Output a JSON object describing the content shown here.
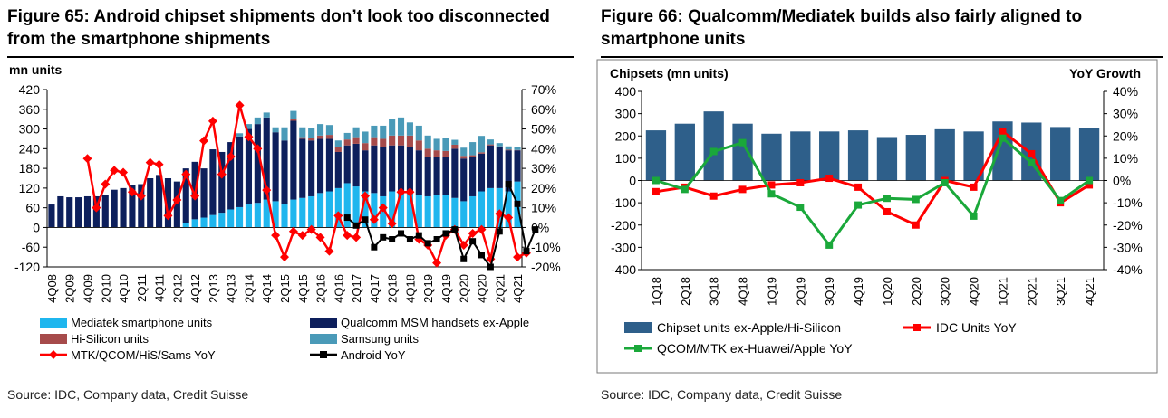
{
  "chart_data": [
    {
      "type": "bar",
      "title": "Figure 65: Android chipset shipments don’t look too disconnected from the smartphone shipments",
      "ylabel": "mn units",
      "ylim": [
        -120,
        420
      ],
      "y_ticks": [
        "420",
        "360",
        "300",
        "240",
        "180",
        "120",
        "60",
        "0",
        "-60",
        "-120"
      ],
      "y2lim": [
        -0.2,
        0.7
      ],
      "y2_ticks": [
        "70%",
        "60%",
        "50%",
        "40%",
        "30%",
        "20%",
        "10%",
        "0%",
        "-10%",
        "-20%"
      ],
      "x_labels": [
        "4Q08",
        "2Q09",
        "4Q09",
        "2Q10",
        "4Q10",
        "2Q11",
        "4Q11",
        "2Q12",
        "4Q12",
        "2Q13",
        "4Q13",
        "2Q14",
        "4Q14",
        "2Q15",
        "4Q15",
        "2Q16",
        "4Q16",
        "2Q17",
        "4Q17",
        "2Q18",
        "4Q18",
        "2Q19",
        "4Q19",
        "2Q20",
        "4Q20",
        "2Q21",
        "4Q21"
      ],
      "quarters": [
        "4Q08",
        "1Q09",
        "2Q09",
        "3Q09",
        "4Q09",
        "1Q10",
        "2Q10",
        "3Q10",
        "4Q10",
        "1Q11",
        "2Q11",
        "3Q11",
        "4Q11",
        "1Q12",
        "2Q12",
        "3Q12",
        "4Q12",
        "1Q13",
        "2Q13",
        "3Q13",
        "4Q13",
        "1Q14",
        "2Q14",
        "3Q14",
        "4Q14",
        "1Q15",
        "2Q15",
        "3Q15",
        "4Q15",
        "1Q16",
        "2Q16",
        "3Q16",
        "4Q16",
        "1Q17",
        "2Q17",
        "3Q17",
        "4Q17",
        "1Q18",
        "2Q18",
        "3Q18",
        "4Q18",
        "1Q19",
        "2Q19",
        "3Q19",
        "4Q19",
        "1Q20",
        "2Q20",
        "3Q20",
        "4Q20",
        "1Q21",
        "2Q21",
        "3Q21",
        "4Q21"
      ],
      "stack_series": [
        {
          "name": "Mediatek smartphone units",
          "color": "#1fb6ee",
          "values": [
            0,
            0,
            0,
            0,
            0,
            0,
            0,
            0,
            0,
            0,
            0,
            0,
            0,
            0,
            0,
            15,
            25,
            30,
            38,
            45,
            55,
            62,
            70,
            75,
            85,
            80,
            70,
            85,
            90,
            95,
            105,
            110,
            120,
            135,
            125,
            110,
            105,
            95,
            110,
            110,
            105,
            100,
            95,
            100,
            100,
            90,
            80,
            95,
            110,
            120,
            120,
            110,
            140
          ]
        },
        {
          "name": "Qualcomm MSM handsets ex-Apple",
          "color": "#0d1f5c",
          "values": [
            70,
            95,
            92,
            92,
            95,
            95,
            100,
            115,
            120,
            128,
            132,
            150,
            160,
            150,
            140,
            165,
            175,
            150,
            200,
            185,
            205,
            215,
            230,
            240,
            250,
            210,
            195,
            240,
            180,
            170,
            165,
            160,
            110,
            115,
            130,
            125,
            145,
            150,
            140,
            140,
            140,
            135,
            120,
            115,
            115,
            150,
            130,
            120,
            115,
            130,
            125,
            125,
            95
          ]
        },
        {
          "name": "Hi-Silicon units",
          "color": "#a64b4b",
          "values": [
            0,
            0,
            0,
            0,
            0,
            0,
            0,
            0,
            0,
            0,
            0,
            0,
            0,
            0,
            0,
            0,
            0,
            0,
            0,
            0,
            0,
            0,
            0,
            0,
            0,
            0,
            0,
            5,
            5,
            8,
            10,
            12,
            15,
            18,
            20,
            22,
            25,
            25,
            30,
            30,
            35,
            30,
            25,
            20,
            18,
            12,
            8,
            5,
            4,
            3,
            2,
            2,
            1
          ]
        },
        {
          "name": "Samsung units",
          "color": "#4a9ab8",
          "values": [
            0,
            0,
            0,
            0,
            0,
            0,
            0,
            0,
            0,
            0,
            0,
            0,
            0,
            0,
            0,
            0,
            0,
            0,
            0,
            0,
            0,
            10,
            15,
            20,
            15,
            15,
            40,
            25,
            30,
            30,
            35,
            30,
            20,
            20,
            30,
            35,
            35,
            40,
            50,
            55,
            40,
            45,
            40,
            35,
            40,
            15,
            25,
            40,
            50,
            15,
            10,
            10,
            10
          ]
        }
      ],
      "line_series": [
        {
          "name": "MTK/QCOM/HiS/Sams YoY",
          "color": "#ff0000",
          "start": 4,
          "values": [
            0.35,
            0.1,
            0.22,
            0.29,
            0.28,
            0.18,
            0.16,
            0.33,
            0.32,
            0.06,
            0.14,
            0.27,
            0.16,
            0.44,
            0.54,
            0.27,
            0.36,
            0.62,
            0.46,
            0.4,
            0.19,
            -0.04,
            -0.15,
            -0.02,
            -0.04,
            -0.01,
            -0.05,
            -0.12,
            0.06,
            -0.04,
            -0.05,
            0.16,
            0.04,
            0.1,
            0.02,
            0.18,
            0.18,
            -0.06,
            -0.09,
            -0.18,
            -0.04,
            -0.01,
            -0.09,
            -0.03,
            -0.01,
            -0.16,
            0.07,
            0.05,
            -0.15,
            -0.13
          ]
        },
        {
          "name": "Android YoY",
          "color": "#000000",
          "start": 33,
          "values": [
            0.05,
            0.01,
            0.04,
            -0.1,
            -0.05,
            -0.06,
            -0.03,
            -0.06,
            -0.04,
            -0.08,
            -0.06,
            -0.03,
            -0.01,
            -0.16,
            -0.07,
            -0.14,
            -0.2,
            -0.02,
            0.22,
            0.12,
            -0.12,
            -0.01
          ]
        }
      ],
      "legend": [
        {
          "label": "Mediatek smartphone units",
          "kind": "box",
          "color": "#1fb6ee"
        },
        {
          "label": "Qualcomm MSM handsets ex-Apple",
          "kind": "box",
          "color": "#0d1f5c"
        },
        {
          "label": "Hi-Silicon units",
          "kind": "box",
          "color": "#a64b4b"
        },
        {
          "label": "Samsung units",
          "kind": "box",
          "color": "#4a9ab8"
        },
        {
          "label": "MTK/QCOM/HiS/Sams YoY",
          "kind": "line-diamond",
          "color": "#ff0000"
        },
        {
          "label": "Android YoY",
          "kind": "line-square",
          "color": "#000000"
        }
      ],
      "source": "Source: IDC, Company data, Credit Suisse"
    },
    {
      "type": "bar",
      "title": "Figure 66: Qualcomm/Mediatek builds also fairly aligned to smartphone units",
      "ylabel": "Chipsets (mn units)",
      "y2label": "YoY Growth",
      "ylim": [
        -400,
        400
      ],
      "y_ticks": [
        "400",
        "300",
        "200",
        "100",
        "0",
        "-100",
        "-200",
        "-300",
        "-400"
      ],
      "y2lim": [
        -0.4,
        0.4
      ],
      "y2_ticks": [
        "40%",
        "30%",
        "20%",
        "10%",
        "0%",
        "-10%",
        "-20%",
        "-30%",
        "-40%"
      ],
      "categories": [
        "1Q18",
        "2Q18",
        "3Q18",
        "4Q18",
        "1Q19",
        "2Q19",
        "3Q19",
        "4Q19",
        "1Q20",
        "2Q20",
        "3Q20",
        "4Q20",
        "1Q21",
        "2Q21",
        "3Q21",
        "4Q21"
      ],
      "x_labels": [
        "1Q18",
        "2Q18",
        "3Q18",
        "4Q18",
        "1Q19",
        "2Q19",
        "3Q19",
        "4Q19",
        "1Q20",
        "2Q20",
        "3Q20",
        "4Q20",
        "1Q21",
        "2Q21",
        "3Q21",
        "4Q21"
      ],
      "bar_series": {
        "name": "Chipset units ex-Apple/Hi-Silicon",
        "color": "#2e5f8a",
        "values": [
          225,
          255,
          310,
          255,
          210,
          220,
          220,
          225,
          195,
          205,
          230,
          220,
          265,
          260,
          240,
          235
        ]
      },
      "line_series": [
        {
          "name": "IDC Units YoY",
          "color": "#ff0000",
          "values": [
            -0.05,
            -0.03,
            -0.07,
            -0.04,
            -0.02,
            -0.01,
            0.01,
            -0.03,
            -0.14,
            -0.2,
            0.0,
            -0.03,
            0.22,
            0.12,
            -0.1,
            -0.02
          ]
        },
        {
          "name": "QCOM/MTK ex-Huawei/Apple YoY",
          "color": "#1aa83a",
          "values": [
            0.0,
            -0.04,
            0.13,
            0.17,
            -0.06,
            -0.12,
            -0.29,
            -0.11,
            -0.08,
            -0.085,
            -0.01,
            -0.16,
            0.19,
            0.08,
            -0.09,
            0.0
          ]
        }
      ],
      "legend": [
        {
          "label": "Chipset units ex-Apple/Hi-Silicon",
          "kind": "box",
          "color": "#2e5f8a"
        },
        {
          "label": "IDC Units YoY",
          "kind": "line-square",
          "color": "#ff0000"
        },
        {
          "label": "QCOM/MTK ex-Huawei/Apple YoY",
          "kind": "line-square",
          "color": "#1aa83a"
        }
      ],
      "source": "Source: IDC, Company data, Credit Suisse"
    }
  ]
}
